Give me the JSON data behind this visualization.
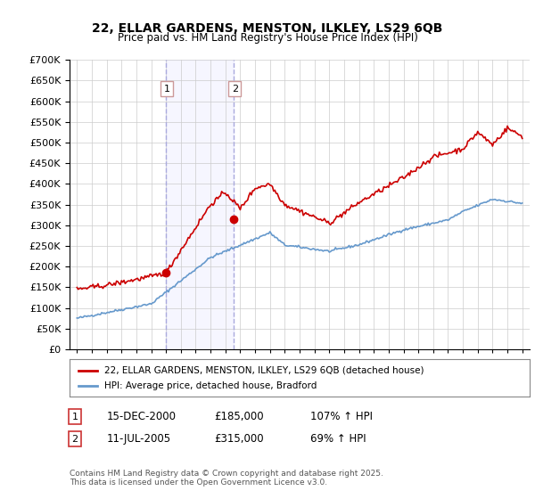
{
  "title_line1": "22, ELLAR GARDENS, MENSTON, ILKLEY, LS29 6QB",
  "title_line2": "Price paid vs. HM Land Registry's House Price Index (HPI)",
  "background_color": "#ffffff",
  "plot_bg_color": "#ffffff",
  "grid_color": "#cccccc",
  "sale1": {
    "date_num": 2000.96,
    "price": 185000,
    "label": "1",
    "date_str": "15-DEC-2000",
    "hpi_pct": "107% ↑ HPI"
  },
  "sale2": {
    "date_num": 2005.53,
    "price": 315000,
    "label": "2",
    "date_str": "11-JUL-2005",
    "hpi_pct": "69% ↑ HPI"
  },
  "legend_line1": "22, ELLAR GARDENS, MENSTON, ILKLEY, LS29 6QB (detached house)",
  "legend_line2": "HPI: Average price, detached house, Bradford",
  "footer": "Contains HM Land Registry data © Crown copyright and database right 2025.\nThis data is licensed under the Open Government Licence v3.0.",
  "red_color": "#cc0000",
  "blue_color": "#6699cc",
  "ylim_max": 700000,
  "ylim_min": 0
}
